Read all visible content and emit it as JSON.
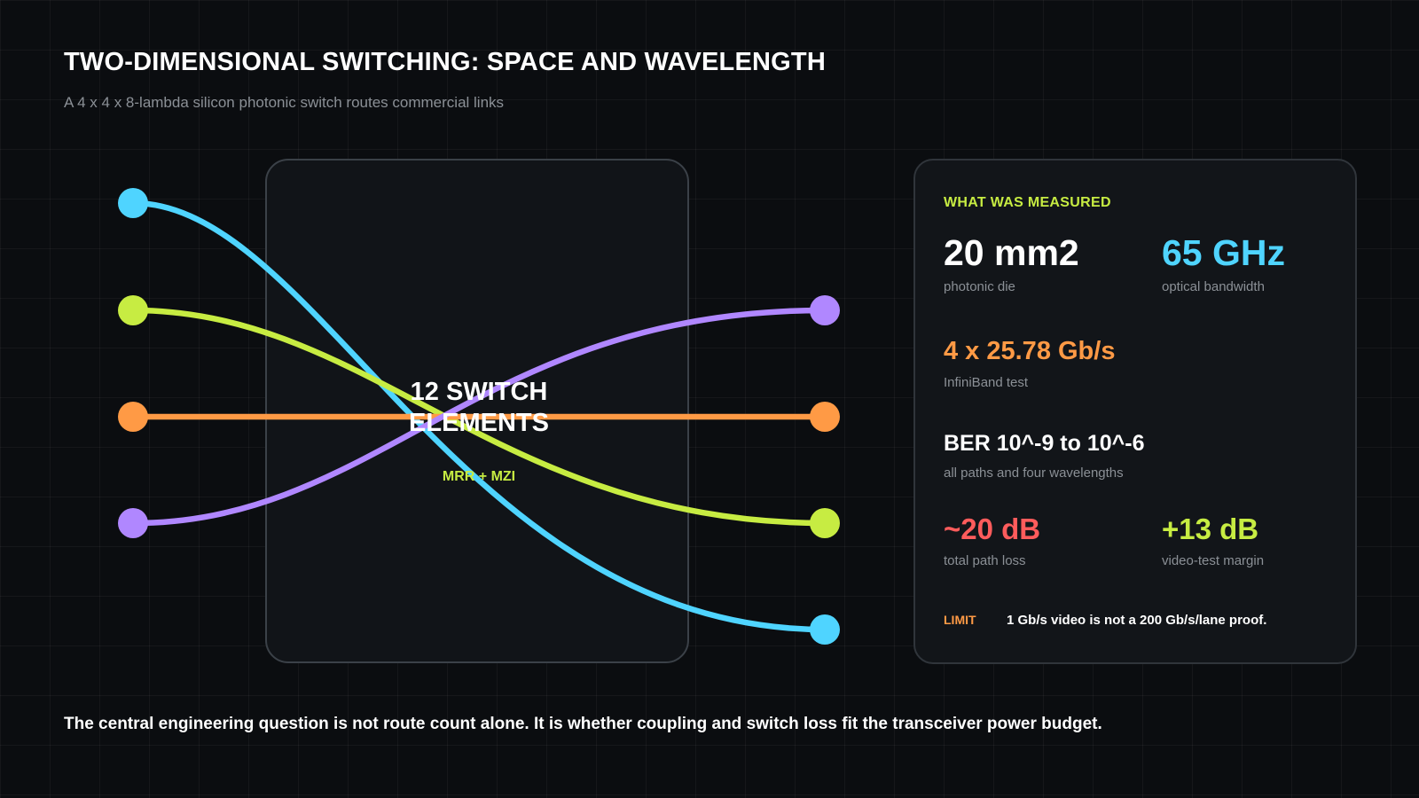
{
  "title": "TWO-DIMENSIONAL SWITCHING: SPACE AND WAVELENGTH",
  "subtitle": "A 4 x 4 x 8-lambda silicon photonic switch routes commercial links",
  "switch": {
    "label": "12 SWITCH ELEMENTS",
    "sublabel": "MRR + MZI"
  },
  "colors": {
    "cyan": "#4fd4ff",
    "lime": "#c7ec42",
    "orange": "#ff9a45",
    "purple": "#b087ff",
    "red": "#ff5c5c"
  },
  "routes": [
    {
      "color": "cyan",
      "from": "in-1",
      "to": "out-4"
    },
    {
      "color": "lime",
      "from": "in-2",
      "to": "out-3"
    },
    {
      "color": "orange",
      "from": "in-3",
      "to": "out-2"
    },
    {
      "color": "purple",
      "from": "in-4",
      "to": "out-1"
    }
  ],
  "panel": {
    "heading": "WHAT WAS MEASURED",
    "metrics": [
      {
        "value": "20 mm2",
        "label": "photonic die",
        "color": "#ffffff"
      },
      {
        "value": "65 GHz",
        "label": "optical bandwidth",
        "color": "#4fd4ff"
      },
      {
        "value": "4 x 25.78 Gb/s",
        "label": "InfiniBand test",
        "color": "#ff9a45"
      },
      {
        "value": "BER 10^-9 to 10^-6",
        "label": "all paths and four wavelengths",
        "color": "#ffffff"
      },
      {
        "value": "~20 dB",
        "label": "total path loss",
        "color": "#ff5c5c"
      },
      {
        "value": "+13 dB",
        "label": "video-test margin",
        "color": "#c7ec42"
      }
    ],
    "limit_tag": "LIMIT",
    "limit_text": "1 Gb/s video is not a 200 Gb/s/lane proof."
  },
  "footer": "The central engineering question is not route count alone. It is whether coupling and switch loss fit the transceiver power budget."
}
